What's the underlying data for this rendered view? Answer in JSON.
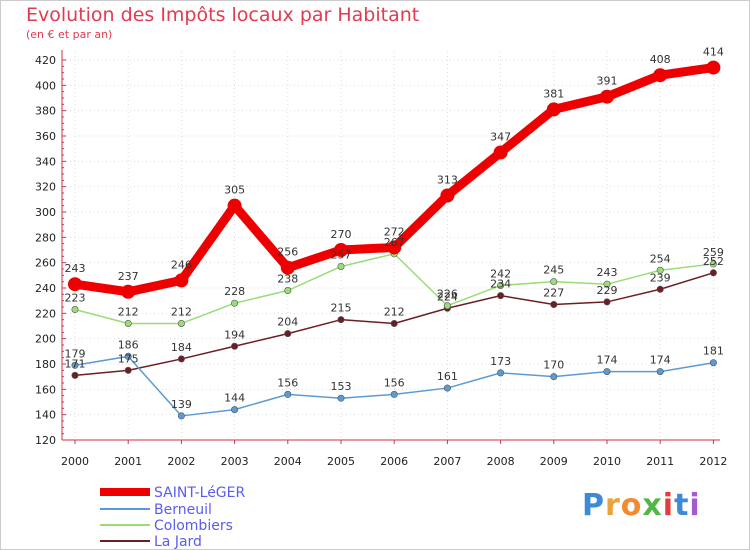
{
  "title": "Evolution des Impôts locaux par Habitant",
  "subtitle": "(en € et par an)",
  "brand": {
    "letters": [
      "P",
      "r",
      "o",
      "x",
      "i",
      "t",
      "i"
    ],
    "colors": [
      "#3d8ad8",
      "#e8a33b",
      "#f08c2e",
      "#4fb847",
      "#e23c3c",
      "#3d8ad8",
      "#a45cc8"
    ]
  },
  "chart_data": {
    "type": "line",
    "title": "Evolution des Impôts locaux par Habitant",
    "subtitle": "(en € et par an)",
    "xlabel": "",
    "ylabel": "",
    "categories": [
      "2000",
      "2001",
      "2002",
      "2003",
      "2004",
      "2005",
      "2006",
      "2007",
      "2008",
      "2009",
      "2010",
      "2011",
      "2012"
    ],
    "ylim": [
      120,
      420
    ],
    "yticks": [
      120,
      140,
      160,
      180,
      200,
      220,
      240,
      260,
      280,
      300,
      320,
      340,
      360,
      380,
      400,
      420
    ],
    "legend_position": "bottom-left",
    "series": [
      {
        "name": "SAINT-LéGER",
        "color": "#ee0000",
        "values": [
          243,
          237,
          246,
          305,
          256,
          270,
          272,
          313,
          347,
          381,
          391,
          408,
          414
        ]
      },
      {
        "name": "Berneuil",
        "color": "#5b9bd5",
        "values": [
          179,
          186,
          139,
          144,
          156,
          153,
          156,
          161,
          173,
          170,
          174,
          174,
          181
        ]
      },
      {
        "name": "Colombiers",
        "color": "#99dd77",
        "values": [
          223,
          212,
          212,
          228,
          238,
          257,
          267,
          226,
          242,
          245,
          243,
          254,
          259
        ]
      },
      {
        "name": "La Jard",
        "color": "#6b1f24",
        "values": [
          171,
          175,
          184,
          194,
          204,
          215,
          212,
          224,
          234,
          227,
          229,
          239,
          252
        ]
      }
    ]
  }
}
